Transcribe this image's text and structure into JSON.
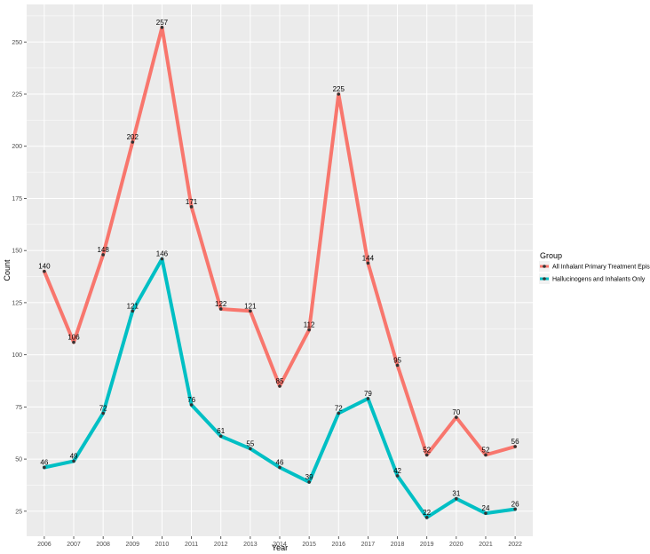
{
  "chart_data": {
    "type": "line",
    "title": "",
    "xlabel": "Year",
    "ylabel": "Count",
    "x": [
      "2006",
      "2007",
      "2008",
      "2009",
      "2010",
      "2011",
      "2012",
      "2013",
      "2014",
      "2015",
      "2016",
      "2017",
      "2018",
      "2019",
      "2020",
      "2021",
      "2022"
    ],
    "y_ticks": [
      25,
      50,
      75,
      100,
      125,
      150,
      175,
      200,
      225,
      250
    ],
    "ylim": [
      13,
      268
    ],
    "grid": true,
    "legend": {
      "title": "Group",
      "placement": "right"
    },
    "series": [
      {
        "name": "All Inhalant Primary Treatment Episodes",
        "color": "#F8766D",
        "values": [
          140,
          106,
          148,
          202,
          257,
          171,
          122,
          121,
          85,
          112,
          225,
          144,
          95,
          52,
          70,
          52,
          56
        ]
      },
      {
        "name": "Hallucinogens and Inhalants Only",
        "color": "#00BFC4",
        "values": [
          46,
          49,
          72,
          121,
          146,
          76,
          61,
          55,
          46,
          39,
          72,
          79,
          42,
          22,
          31,
          24,
          26
        ]
      }
    ]
  }
}
